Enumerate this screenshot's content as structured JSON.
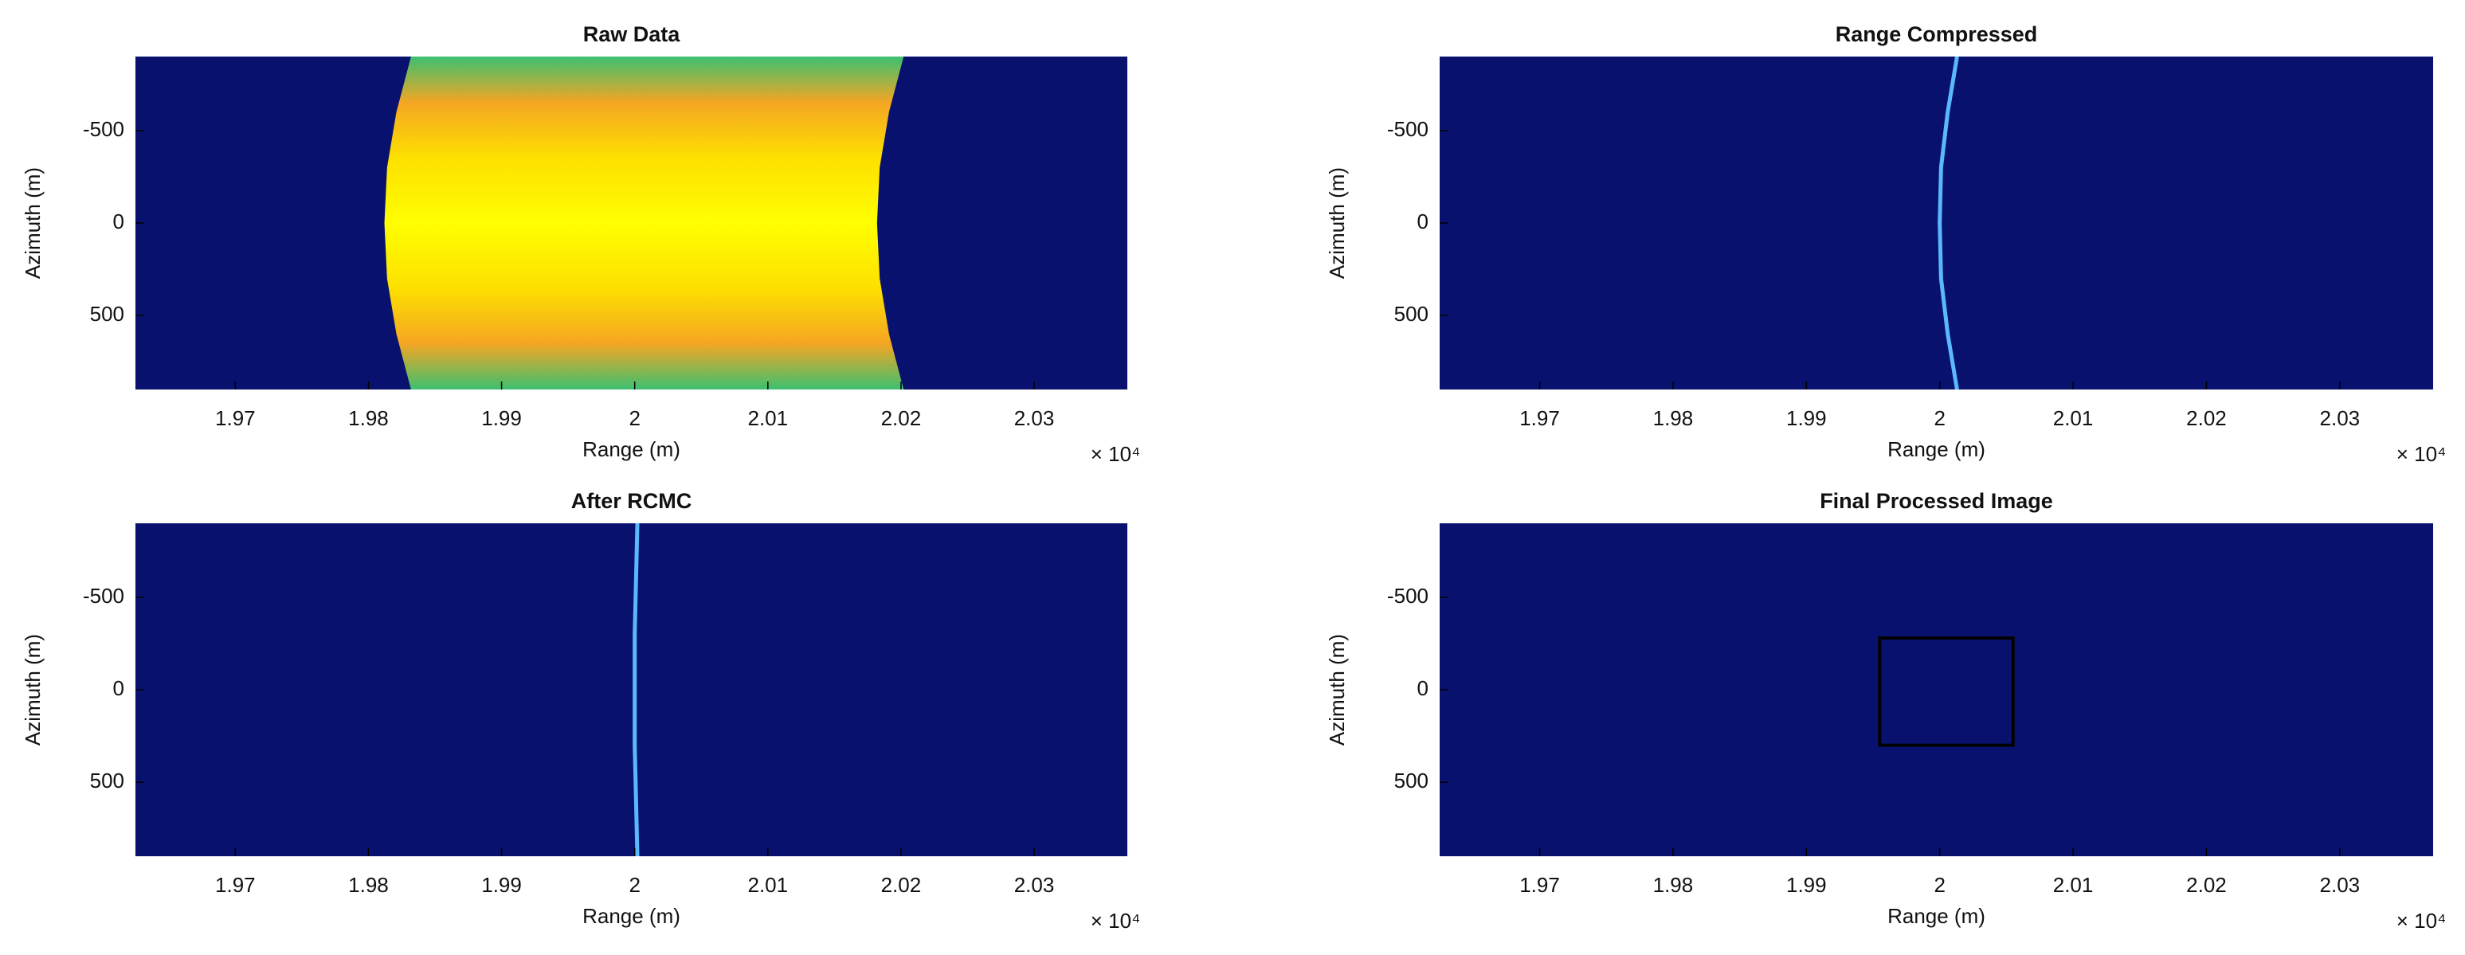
{
  "chart_data": [
    {
      "type": "image",
      "title": "Raw Data",
      "x_label": "Range (m)",
      "y_label": "Azimuth (m)",
      "x_multiplier": "× 10⁴",
      "xlim": [
        19625,
        20370
      ],
      "ylim": [
        900,
        -900
      ],
      "xticks": [
        {
          "value": 19700,
          "label": "1.97"
        },
        {
          "value": 19800,
          "label": "1.98"
        },
        {
          "value": 19900,
          "label": "1.99"
        },
        {
          "value": 20000,
          "label": "2"
        },
        {
          "value": 20100,
          "label": "2.01"
        },
        {
          "value": 20200,
          "label": "2.02"
        },
        {
          "value": 20300,
          "label": "2.03"
        }
      ],
      "yticks": [
        -500,
        0,
        500
      ],
      "background": "#08126e",
      "band": {
        "y": [
          -900,
          -600,
          -300,
          0,
          300,
          600,
          900
        ],
        "left_x": [
          19832,
          19821,
          19814,
          19812,
          19814,
          19821,
          19832
        ],
        "right_x": [
          20202,
          20191,
          20184,
          20182,
          20184,
          20191,
          20202
        ]
      },
      "color_stops": {
        "azimuth": [
          -900,
          -650,
          -350,
          0,
          350,
          650,
          900
        ],
        "colors": [
          "#3cc070",
          "#f5a623",
          "#fde000",
          "#ffff00",
          "#fde000",
          "#f5a623",
          "#3cc070"
        ]
      }
    },
    {
      "type": "image",
      "title": "Range Compressed",
      "x_label": "Range (m)",
      "y_label": "Azimuth (m)",
      "x_multiplier": "× 10⁴",
      "xlim": [
        19625,
        20370
      ],
      "ylim": [
        900,
        -900
      ],
      "xticks": [
        {
          "value": 19700,
          "label": "1.97"
        },
        {
          "value": 19800,
          "label": "1.98"
        },
        {
          "value": 19900,
          "label": "1.99"
        },
        {
          "value": 20000,
          "label": "2"
        },
        {
          "value": 20100,
          "label": "2.01"
        },
        {
          "value": 20200,
          "label": "2.02"
        },
        {
          "value": 20300,
          "label": "2.03"
        }
      ],
      "yticks": [
        -500,
        0,
        500
      ],
      "background": "#08126e",
      "curve": {
        "y": [
          -900,
          -600,
          -300,
          0,
          300,
          600,
          900
        ],
        "x": [
          20013,
          20006,
          20001,
          20000,
          20001,
          20006,
          20013
        ],
        "color": "#5ab8ff"
      }
    },
    {
      "type": "image",
      "title": "After RCMC",
      "x_label": "Range (m)",
      "y_label": "Azimuth (m)",
      "x_multiplier": "× 10⁴",
      "xlim": [
        19625,
        20370
      ],
      "ylim": [
        900,
        -900
      ],
      "xticks": [
        {
          "value": 19700,
          "label": "1.97"
        },
        {
          "value": 19800,
          "label": "1.98"
        },
        {
          "value": 19900,
          "label": "1.99"
        },
        {
          "value": 20000,
          "label": "2"
        },
        {
          "value": 20100,
          "label": "2.01"
        },
        {
          "value": 20200,
          "label": "2.02"
        },
        {
          "value": 20300,
          "label": "2.03"
        }
      ],
      "yticks": [
        -500,
        0,
        500
      ],
      "background": "#08126e",
      "curve": {
        "y": [
          -900,
          -600,
          -300,
          0,
          300,
          600,
          900
        ],
        "x": [
          20002,
          20001,
          20000,
          20000,
          20000,
          20001,
          20002
        ],
        "color": "#5ab8ff"
      }
    },
    {
      "type": "image",
      "title": "Final Processed Image",
      "x_label": "Range (m)",
      "y_label": "Azimuth (m)",
      "x_multiplier": "× 10⁴",
      "xlim": [
        19625,
        20370
      ],
      "ylim": [
        900,
        -900
      ],
      "xticks": [
        {
          "value": 19700,
          "label": "1.97"
        },
        {
          "value": 19800,
          "label": "1.98"
        },
        {
          "value": 19900,
          "label": "1.99"
        },
        {
          "value": 20000,
          "label": "2"
        },
        {
          "value": 20100,
          "label": "2.01"
        },
        {
          "value": 20200,
          "label": "2.02"
        },
        {
          "value": 20300,
          "label": "2.03"
        }
      ],
      "yticks": [
        -500,
        0,
        500
      ],
      "background": "#08126e",
      "box": {
        "x": [
          19955,
          20055
        ],
        "y": [
          -280,
          300
        ],
        "color": "#000000"
      }
    }
  ]
}
